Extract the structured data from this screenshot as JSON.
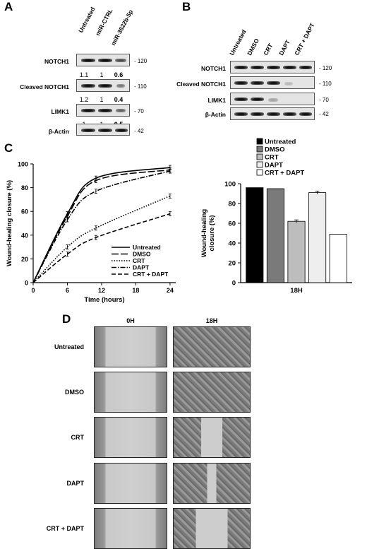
{
  "panels": {
    "a": "A",
    "b": "B",
    "c": "C",
    "d": "D"
  },
  "panelA": {
    "lanes": [
      "Untreated",
      "miR-CTRL",
      "miR-3622b-5p"
    ],
    "rows": [
      {
        "label": "NOTCH1",
        "kda": "- 120"
      },
      {
        "label": "Cleaved NOTCH1",
        "kda": "- 110"
      },
      {
        "label": "LIMK1",
        "kda": "- 70"
      },
      {
        "label": "β-Actin",
        "kda": "- 42"
      }
    ],
    "quant_notch1": [
      "1.1",
      "1",
      "0.6"
    ],
    "quant_cleaved": [
      "1.2",
      "1",
      "0.4"
    ],
    "quant_limk1": [
      "1",
      "1",
      "0.5"
    ]
  },
  "panelB": {
    "lanes": [
      "Untreated",
      "DMSO",
      "CRT",
      "DAPT",
      "CRT + DAPT"
    ],
    "rows": [
      {
        "label": "NOTCH1",
        "kda": "- 120"
      },
      {
        "label": "Cleaved NOTCH1",
        "kda": "- 110"
      },
      {
        "label": "LIMK1",
        "kda": "- 70"
      },
      {
        "label": "β-Actin",
        "kda": "- 42"
      }
    ]
  },
  "chart_data": [
    {
      "type": "line",
      "ylabel": "Wound-healing closure (%)",
      "xlabel": "Time (hours)",
      "xlim": [
        0,
        25
      ],
      "ylim": [
        0,
        100
      ],
      "xticks": [
        "0",
        "6",
        "12",
        "18",
        "24"
      ],
      "yticks": [
        "0",
        "20",
        "40",
        "60",
        "80",
        "100"
      ],
      "x": [
        0,
        6,
        11,
        24
      ],
      "series": [
        {
          "name": "Untreated",
          "style": "solid",
          "values": [
            0,
            58,
            88,
            97
          ]
        },
        {
          "name": "DMSO",
          "style": "longdash",
          "values": [
            0,
            56,
            86,
            95
          ]
        },
        {
          "name": "CRT",
          "style": "dotted",
          "values": [
            0,
            30,
            46,
            73
          ]
        },
        {
          "name": "DAPT",
          "style": "dashdot",
          "values": [
            0,
            53,
            77,
            94
          ]
        },
        {
          "name": "CRT + DAPT",
          "style": "dashed",
          "values": [
            0,
            24,
            38,
            58
          ]
        }
      ],
      "legend": "bottom-right"
    },
    {
      "type": "bar",
      "ylabel": "Wound-healing closure (%)",
      "categories": [
        "18H"
      ],
      "ylim": [
        0,
        100
      ],
      "yticks": [
        "0",
        "20",
        "40",
        "60",
        "80",
        "100"
      ],
      "series": [
        {
          "name": "Untreated",
          "color": "#000000",
          "values": [
            96
          ]
        },
        {
          "name": "DMSO",
          "color": "#7a7a7a",
          "values": [
            95
          ]
        },
        {
          "name": "CRT",
          "color": "#bdbdbd",
          "values": [
            62
          ]
        },
        {
          "name": "DAPT",
          "color": "#eeeeee",
          "values": [
            91
          ]
        },
        {
          "name": "CRT + DAPT",
          "color": "#ffffff",
          "values": [
            49
          ]
        }
      ],
      "legend": "top"
    }
  ],
  "panelD": {
    "columns": [
      "0H",
      "18H"
    ],
    "rows": [
      "Untreated",
      "DMSO",
      "CRT",
      "DAPT",
      "CRT + DAPT"
    ]
  }
}
